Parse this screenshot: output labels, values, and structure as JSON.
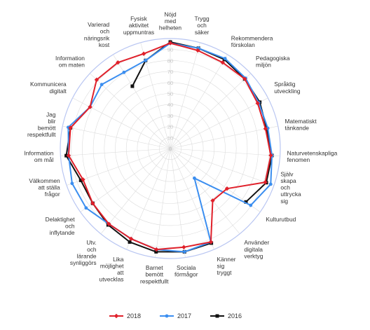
{
  "chart_data": {
    "type": "radar",
    "categories": [
      "Nöjd\nmed\nhelheten",
      "Trygg\noch\nsäker",
      "Rekommendera\nförskolan",
      "Pedagogiska\nmiljön",
      "Språklig\nutveckling",
      "Matematiskt\ntänkande",
      "Naturvetenskapliga\nfenomen",
      "Själv\nskapa\noch\nuttrycka\nsig",
      "Kulturutbud",
      "Använder\ndigitala\nverktyg",
      "Känner\nsig\ntryggt",
      "Sociala\nförmågor",
      "Barnet\nbemött\nrespektfullt",
      "Lika\nmöjlighet\natt\nutvecklas",
      "Utv.\noch\nlärande\nsynliggörs",
      "Delaktighet\noch\ninflytande",
      "Välkommen\natt ställa\nfrågor",
      "Information\nom mål",
      "Jag\nblir\nbemött\nrespektfullt",
      "Kommunicera\ndigitalt",
      "Information\nom maten",
      "Varierad\noch\nnäringsrik\nkost",
      "Fysisk\naktivitet\nuppmuntras"
    ],
    "ticks": [
      "0",
      "10",
      "20",
      "30",
      "40",
      "50",
      "60",
      "70",
      "80",
      "90"
    ],
    "rmax": 95,
    "series": [
      {
        "name": "2018",
        "color": "#e0202a",
        "marker": "diamond",
        "values": [
          91,
          88,
          87,
          88,
          85,
          84,
          87,
          87,
          60,
          58,
          88,
          86,
          88,
          85,
          84,
          82,
          80,
          88,
          88,
          78,
          87,
          87,
          85
        ]
      },
      {
        "name": "2017",
        "color": "#3b8ef0",
        "marker": "circle",
        "values": [
          91,
          90,
          91,
          89,
          86,
          86,
          88,
          92,
          85,
          33,
          88,
          90,
          88,
          85,
          84,
          89,
          90,
          88,
          90,
          78,
          81,
          77,
          79
        ]
      },
      {
        "name": "2016",
        "color": "#111111",
        "marker": "square",
        "values": [
          92,
          90,
          90,
          88,
          87,
          85,
          88,
          88,
          80,
          null,
          89,
          90,
          90,
          88,
          85,
          82,
          82,
          90,
          88,
          null,
          null,
          63,
          79
        ]
      }
    ],
    "legend_position": "bottom",
    "grid": true
  }
}
